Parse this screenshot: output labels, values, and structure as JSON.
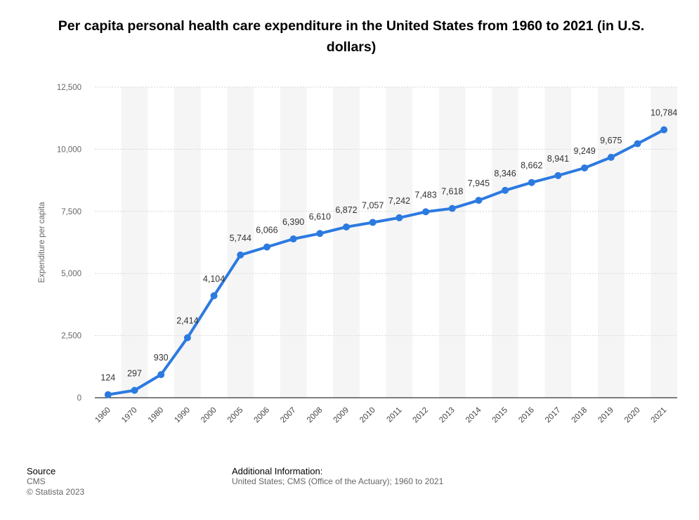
{
  "chart_data": {
    "type": "line",
    "title": "Per capita personal health care expenditure in the United States from 1960 to 2021 (in U.S. dollars)",
    "xlabel": "",
    "ylabel": "Expenditure per capita",
    "categories": [
      "1960",
      "1970",
      "1980",
      "1990",
      "2000",
      "2005",
      "2006",
      "2007",
      "2008",
      "2009",
      "2010",
      "2011",
      "2012",
      "2013",
      "2014",
      "2015",
      "2016",
      "2017",
      "2018",
      "2019",
      "2020",
      "2021"
    ],
    "values": [
      124,
      297,
      930,
      2414,
      4104,
      5744,
      6066,
      6390,
      6610,
      6872,
      7057,
      7242,
      7483,
      7618,
      7945,
      8346,
      8662,
      8941,
      9249,
      9675,
      10223,
      10784
    ],
    "data_labels": [
      "124",
      "297",
      "930",
      "2,414",
      "4,104",
      "5,744",
      "6,066",
      "6,390",
      "6,610",
      "6,872",
      "7,057",
      "7,242",
      "7,483",
      "7,618",
      "7,945",
      "8,346",
      "8,662",
      "8,941",
      "9,249",
      "9,675",
      "",
      "10,784"
    ],
    "ylim": [
      0,
      12500
    ],
    "y_ticks": [
      0,
      2500,
      5000,
      7500,
      10000,
      12500
    ],
    "y_tick_labels": [
      "0",
      "2,500",
      "5,000",
      "7,500",
      "10,000",
      "12,500"
    ],
    "grid": true,
    "legend": "none",
    "line_color": "#2c7ae0"
  },
  "footer": {
    "source_heading": "Source",
    "source_name": "CMS",
    "copyright": "© Statista 2023",
    "additional_heading": "Additional Information:",
    "additional_text": "United States; CMS (Office of the Actuary); 1960 to 2021"
  }
}
